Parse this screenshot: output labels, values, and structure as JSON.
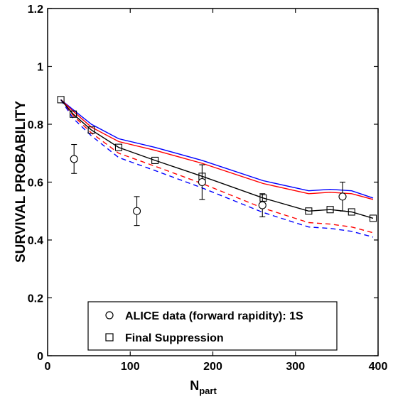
{
  "chart_data": {
    "type": "line",
    "title": "",
    "xlabel": "N",
    "xlabel_sub": "part",
    "ylabel": "SURVIVAL PROBABILITY",
    "xlim": [
      0,
      400
    ],
    "ylim": [
      0,
      1.2
    ],
    "xticks": [
      0,
      100,
      200,
      300,
      400
    ],
    "yticks": [
      0,
      0.2,
      0.4,
      0.6,
      0.8,
      1,
      1.2
    ],
    "xtick_labels": [
      "0",
      "100",
      "200",
      "300",
      "400"
    ],
    "ytick_labels": [
      "0",
      "0.2",
      "0.4",
      "0.6",
      "0.8",
      "1",
      "1.2"
    ],
    "grid": false,
    "legend_position": "bottom-center",
    "legend": [
      {
        "label": "ALICE data (forward rapidity): 1S",
        "marker": "circle"
      },
      {
        "label": "Final Suppression",
        "marker": "square"
      }
    ],
    "series": [
      {
        "name": "ALICE data (forward rapidity): 1S",
        "style": "points",
        "marker": "circle",
        "color": "#000000",
        "points": [
          {
            "x": 32,
            "y": 0.68,
            "err": 0.05
          },
          {
            "x": 108,
            "y": 0.5,
            "err": 0.05
          },
          {
            "x": 187,
            "y": 0.6,
            "err": 0.06
          },
          {
            "x": 260,
            "y": 0.52,
            "err": 0.04
          },
          {
            "x": 357,
            "y": 0.55,
            "err": 0.05
          }
        ]
      },
      {
        "name": "Final Suppression",
        "style": "line-markers",
        "marker": "square",
        "color": "#000000",
        "points": [
          {
            "x": 16,
            "y": 0.885
          },
          {
            "x": 31,
            "y": 0.835
          },
          {
            "x": 53,
            "y": 0.78
          },
          {
            "x": 86,
            "y": 0.72
          },
          {
            "x": 130,
            "y": 0.675
          },
          {
            "x": 187,
            "y": 0.62
          },
          {
            "x": 261,
            "y": 0.545
          },
          {
            "x": 316,
            "y": 0.5
          },
          {
            "x": 342,
            "y": 0.505
          },
          {
            "x": 368,
            "y": 0.497
          },
          {
            "x": 394,
            "y": 0.475
          }
        ]
      },
      {
        "style": "line",
        "dash": false,
        "color": "#0000ff",
        "points": [
          {
            "x": 16,
            "y": 0.885
          },
          {
            "x": 31,
            "y": 0.85
          },
          {
            "x": 53,
            "y": 0.8
          },
          {
            "x": 86,
            "y": 0.75
          },
          {
            "x": 130,
            "y": 0.72
          },
          {
            "x": 187,
            "y": 0.675
          },
          {
            "x": 261,
            "y": 0.605
          },
          {
            "x": 316,
            "y": 0.57
          },
          {
            "x": 342,
            "y": 0.575
          },
          {
            "x": 368,
            "y": 0.57
          },
          {
            "x": 394,
            "y": 0.545
          }
        ]
      },
      {
        "style": "line",
        "dash": false,
        "color": "#ff0000",
        "points": [
          {
            "x": 16,
            "y": 0.885
          },
          {
            "x": 31,
            "y": 0.845
          },
          {
            "x": 53,
            "y": 0.79
          },
          {
            "x": 86,
            "y": 0.74
          },
          {
            "x": 130,
            "y": 0.71
          },
          {
            "x": 187,
            "y": 0.665
          },
          {
            "x": 261,
            "y": 0.595
          },
          {
            "x": 316,
            "y": 0.56
          },
          {
            "x": 342,
            "y": 0.565
          },
          {
            "x": 368,
            "y": 0.56
          },
          {
            "x": 394,
            "y": 0.54
          }
        ]
      },
      {
        "style": "line",
        "dash": true,
        "color": "#ff0000",
        "points": [
          {
            "x": 16,
            "y": 0.885
          },
          {
            "x": 31,
            "y": 0.83
          },
          {
            "x": 53,
            "y": 0.77
          },
          {
            "x": 86,
            "y": 0.7
          },
          {
            "x": 130,
            "y": 0.655
          },
          {
            "x": 187,
            "y": 0.595
          },
          {
            "x": 261,
            "y": 0.51
          },
          {
            "x": 316,
            "y": 0.46
          },
          {
            "x": 342,
            "y": 0.455
          },
          {
            "x": 368,
            "y": 0.445
          },
          {
            "x": 394,
            "y": 0.425
          }
        ]
      },
      {
        "style": "line",
        "dash": true,
        "color": "#0000ff",
        "points": [
          {
            "x": 16,
            "y": 0.885
          },
          {
            "x": 31,
            "y": 0.82
          },
          {
            "x": 53,
            "y": 0.76
          },
          {
            "x": 86,
            "y": 0.685
          },
          {
            "x": 130,
            "y": 0.64
          },
          {
            "x": 187,
            "y": 0.58
          },
          {
            "x": 261,
            "y": 0.495
          },
          {
            "x": 316,
            "y": 0.445
          },
          {
            "x": 342,
            "y": 0.44
          },
          {
            "x": 368,
            "y": 0.43
          },
          {
            "x": 394,
            "y": 0.41
          }
        ]
      }
    ]
  }
}
